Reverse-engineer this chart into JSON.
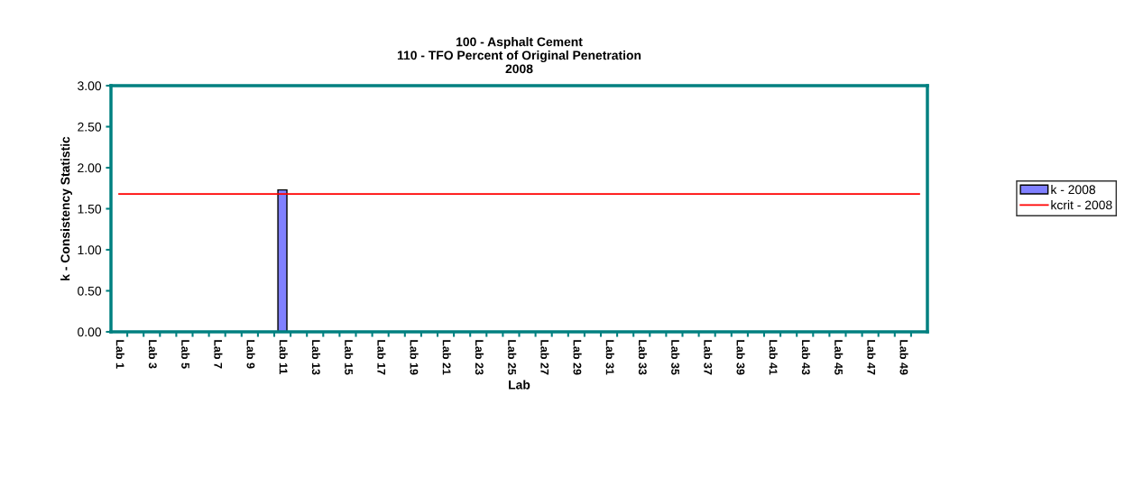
{
  "chart_data": {
    "type": "bar",
    "title": "100 - Asphalt Cement\n110 - TFO Percent of Original Penetration\n2008",
    "xlabel": "Lab",
    "ylabel": "k - Consistency Statistic",
    "categories": [
      "Lab 1",
      null,
      "Lab 3",
      null,
      "Lab 5",
      null,
      "Lab 7",
      null,
      "Lab 9",
      null,
      "Lab 11",
      null,
      "Lab 13",
      null,
      "Lab 15",
      null,
      "Lab 17",
      null,
      "Lab 19",
      null,
      "Lab 21",
      null,
      "Lab 23",
      null,
      "Lab 25",
      null,
      "Lab 27",
      null,
      "Lab 29",
      null,
      "Lab 31",
      null,
      "Lab 33",
      null,
      "Lab 35",
      null,
      "Lab 37",
      null,
      "Lab 39",
      null,
      "Lab 41",
      null,
      "Lab 43",
      null,
      "Lab 45",
      null,
      "Lab 47",
      null,
      "Lab 49",
      null
    ],
    "series": [
      {
        "name": "k - 2008",
        "color": "#8080ff",
        "values": [
          null,
          null,
          null,
          null,
          null,
          null,
          null,
          null,
          null,
          null,
          1.73,
          null,
          null,
          null,
          null,
          null,
          null,
          null,
          null,
          null,
          null,
          null,
          null,
          null,
          null,
          null,
          null,
          null,
          null,
          null,
          null,
          null,
          null,
          null,
          null,
          null,
          null,
          null,
          null,
          null,
          null,
          null,
          null,
          null,
          null,
          null,
          null,
          null,
          null,
          null
        ]
      },
      {
        "name": "kcrit - 2008",
        "type": "line",
        "color": "#ff0000",
        "values": [
          1.68,
          1.68,
          1.68,
          1.68,
          1.68,
          1.68,
          1.68,
          1.68,
          1.68,
          1.68,
          1.68,
          1.68,
          1.68,
          1.68,
          1.68,
          1.68,
          1.68,
          1.68,
          1.68,
          1.68,
          1.68,
          1.68,
          1.68,
          1.68,
          1.68,
          1.68,
          1.68,
          1.68,
          1.68,
          1.68,
          1.68,
          1.68,
          1.68,
          1.68,
          1.68,
          1.68,
          1.68,
          1.68,
          1.68,
          1.68,
          1.68,
          1.68,
          1.68,
          1.68,
          1.68,
          1.68,
          1.68,
          1.68,
          1.68,
          1.68
        ]
      }
    ],
    "ylim": [
      0,
      3
    ],
    "yticks": [
      {
        "value": 0,
        "label": "0.00"
      },
      {
        "value": 0.5,
        "label": "0.50"
      },
      {
        "value": 1,
        "label": "1.00"
      },
      {
        "value": 1.5,
        "label": "1.50"
      },
      {
        "value": 2,
        "label": "2.00"
      },
      {
        "value": 2.5,
        "label": "2.50"
      },
      {
        "value": 3,
        "label": "3.00"
      }
    ],
    "grid": false,
    "legend": "right",
    "marker": "none"
  }
}
